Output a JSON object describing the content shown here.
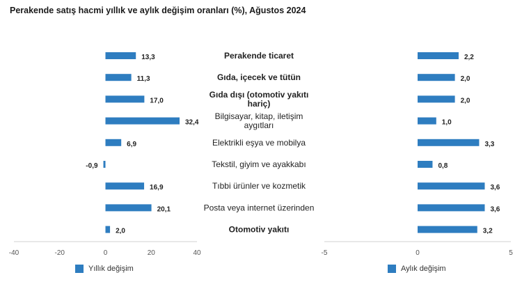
{
  "title": "Perakende satış hacmi yıllık ve aylık değişim oranları (%), Ağustos 2024",
  "colors": {
    "bar": "#2e7dc0",
    "axis": "#d0d0d0",
    "text": "#222222"
  },
  "chart_data": {
    "type": "bar",
    "orientation": "horizontal",
    "title": "Perakende satış hacmi yıllık ve aylık değişim oranları (%), Ağustos 2024",
    "categories": [
      {
        "label": "Perakende ticaret",
        "lines": [
          "Perakende ticaret"
        ],
        "bold": true
      },
      {
        "label": "Gıda, içecek ve tütün",
        "lines": [
          "Gıda, içecek ve tütün"
        ],
        "bold": true
      },
      {
        "label": "Gıda dışı (otomotiv yakıtı hariç)",
        "lines": [
          "Gıda dışı (otomotiv yakıtı",
          "hariç)"
        ],
        "bold": true
      },
      {
        "label": "Bilgisayar, kitap, iletişim aygıtları",
        "lines": [
          "Bilgisayar, kitap, iletişim",
          "aygıtları"
        ],
        "bold": false
      },
      {
        "label": "Elektrikli eşya ve mobilya",
        "lines": [
          "Elektrikli eşya ve mobilya"
        ],
        "bold": false
      },
      {
        "label": "Tekstil, giyim ve ayakkabı",
        "lines": [
          "Tekstil, giyim ve ayakkabı"
        ],
        "bold": false
      },
      {
        "label": "Tıbbi ürünler ve kozmetik",
        "lines": [
          "Tıbbi ürünler ve kozmetik"
        ],
        "bold": false
      },
      {
        "label": "Posta veya internet üzerinden",
        "lines": [
          "Posta veya internet üzerinden"
        ],
        "bold": false
      },
      {
        "label": "Otomotiv yakıtı",
        "lines": [
          "Otomotiv yakıtı"
        ],
        "bold": true
      }
    ],
    "series": [
      {
        "name": "Yıllık değişim",
        "values": [
          13.3,
          11.3,
          17.0,
          32.4,
          6.9,
          -0.9,
          16.9,
          20.1,
          2.0
        ],
        "labels": [
          "13,3",
          "11,3",
          "17,0",
          "32,4",
          "6,9",
          "-0,9",
          "16,9",
          "20,1",
          "2,0"
        ],
        "xlim": [
          -40,
          40
        ],
        "ticks": [
          -40,
          -20,
          0,
          20,
          40
        ]
      },
      {
        "name": "Aylık değişim",
        "values": [
          2.2,
          2.0,
          2.0,
          1.0,
          3.3,
          0.8,
          3.6,
          3.6,
          3.2
        ],
        "labels": [
          "2,2",
          "2,0",
          "2,0",
          "1,0",
          "3,3",
          "0,8",
          "3,6",
          "3,6",
          "3,2"
        ],
        "xlim": [
          -5,
          5
        ],
        "ticks": [
          -5,
          0,
          5
        ]
      }
    ],
    "xlabel": "",
    "ylabel": "",
    "legend": "bottom"
  }
}
